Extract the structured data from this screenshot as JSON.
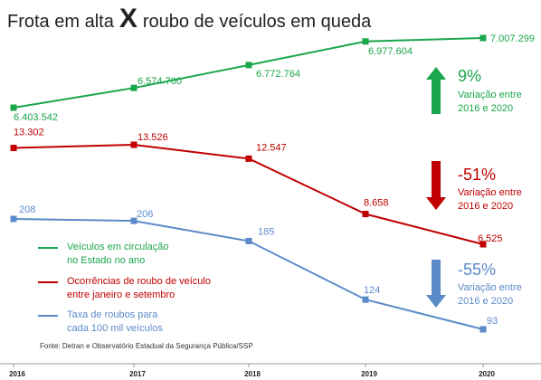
{
  "title": {
    "left": "Frota em alta",
    "x": "X",
    "right": "roubo de veículos em queda"
  },
  "colors": {
    "fleet": "#1aa64b",
    "robberies": "#c00000",
    "rate": "#5b8ac8",
    "axis": "#999999"
  },
  "chart_data": {
    "type": "line",
    "categories": [
      "2016",
      "2017",
      "2018",
      "2019",
      "2020"
    ],
    "series": [
      {
        "name": "Veículos em circulação no Estado no ano",
        "key": "fleet",
        "values": [
          6403542,
          6574700,
          6772764,
          6977604,
          7007299
        ],
        "labels": [
          "6.403.542",
          "6.574.700",
          "6.772.764",
          "6.977.604",
          "7.007.299"
        ]
      },
      {
        "name": "Ocorrências de roubo de veículo entre janeiro e setembro",
        "key": "robberies",
        "values": [
          13302,
          13526,
          12547,
          8658,
          6525
        ],
        "labels": [
          "13.302",
          "13.526",
          "12.547",
          "8.658",
          "6.525"
        ]
      },
      {
        "name": "Taxa de roubos para cada 100 mil veículos",
        "key": "rate",
        "values": [
          208,
          206,
          185,
          124,
          93
        ],
        "labels": [
          "208",
          "206",
          "185",
          "124",
          "93"
        ]
      }
    ],
    "legend_position": "bottom-left",
    "annotations": [
      {
        "series": "fleet",
        "direction": "up",
        "percent": "9%",
        "note_line1": "Variação entre",
        "note_line2": "2016 e 2020"
      },
      {
        "series": "robberies",
        "direction": "down",
        "percent": "-51%",
        "note_line1": "Variação entre",
        "note_line2": "2016 e 2020"
      },
      {
        "series": "rate",
        "direction": "down",
        "percent": "-55%",
        "note_line1": "Variação entre",
        "note_line2": "2016 e 2020"
      }
    ]
  },
  "legend": [
    {
      "key": "fleet",
      "line1": "Veículos em circulação",
      "line2": "no Estado no ano"
    },
    {
      "key": "robberies",
      "line1": "Ocorrências de roubo de veículo",
      "line2": "entre janeiro e setembro"
    },
    {
      "key": "rate",
      "line1": "Taxa de roubos para",
      "line2": "cada 100 mil veículos"
    }
  ],
  "source": "Fonte: Detran e Observatório Estadual da Segurança Pública/SSP"
}
